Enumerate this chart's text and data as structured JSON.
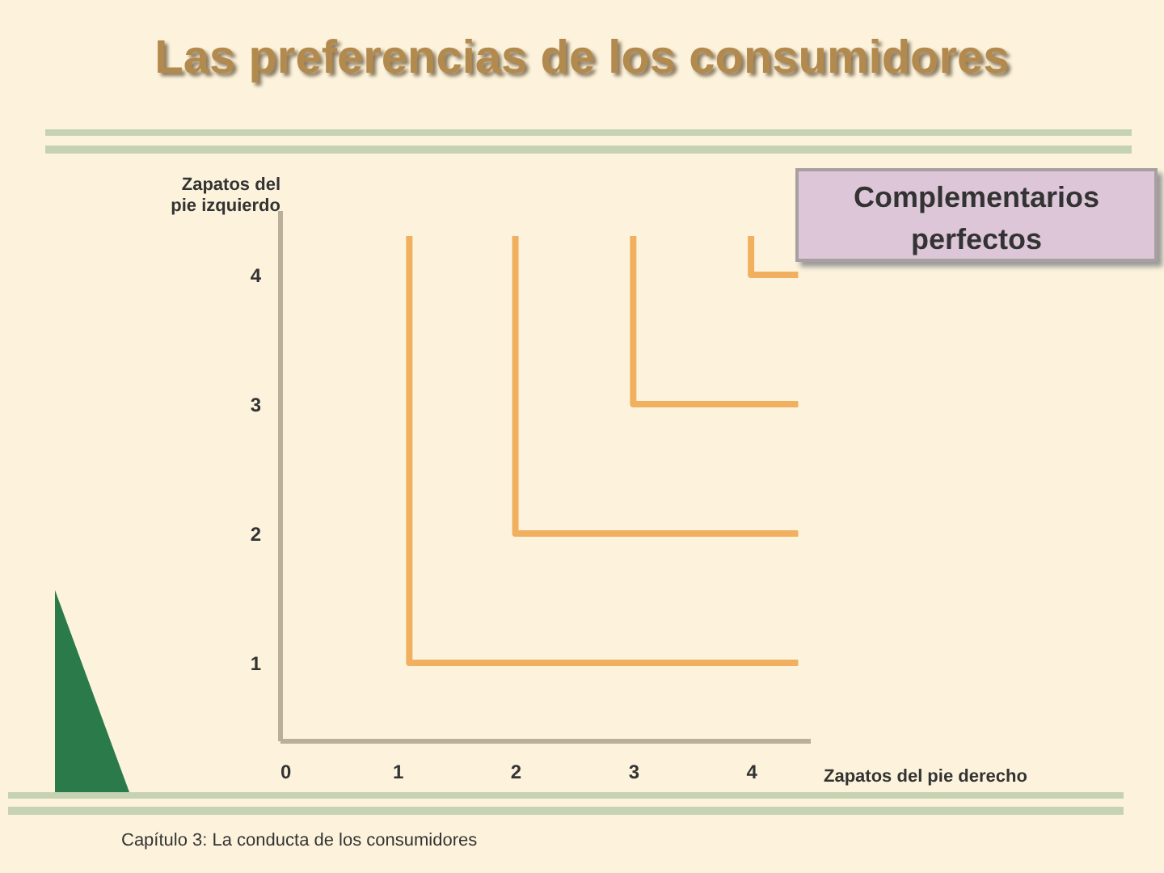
{
  "chart_data": {
    "type": "line",
    "title": "Las preferencias de los consumidores",
    "xlabel": "Zapatos del pie derecho",
    "ylabel": "Zapatos del pie izquierdo",
    "xlim": [
      0,
      4.5
    ],
    "ylim": [
      0.4,
      4.5
    ],
    "xticks": [
      0,
      1,
      2,
      3,
      4
    ],
    "yticks": [
      1,
      2,
      3,
      4
    ],
    "grid": false,
    "marker": "none",
    "line_style": "solid",
    "series": [
      {
        "color": "#f0b060",
        "x": [
          1.1,
          1.1,
          4.4
        ],
        "values": [
          4.3,
          1,
          1
        ]
      },
      {
        "color": "#f0b060",
        "x": [
          2,
          2,
          4.4
        ],
        "values": [
          4.3,
          2,
          2
        ]
      },
      {
        "color": "#f0b060",
        "x": [
          3,
          3,
          4.4
        ],
        "values": [
          4.3,
          3,
          3
        ]
      },
      {
        "color": "#f0b060",
        "x": [
          4,
          4,
          4.4
        ],
        "values": [
          4.3,
          4,
          4
        ]
      }
    ],
    "annotations": [
      "Complementarios perfectos",
      "Capítulo 3: La conducta de los consumidores"
    ]
  }
}
